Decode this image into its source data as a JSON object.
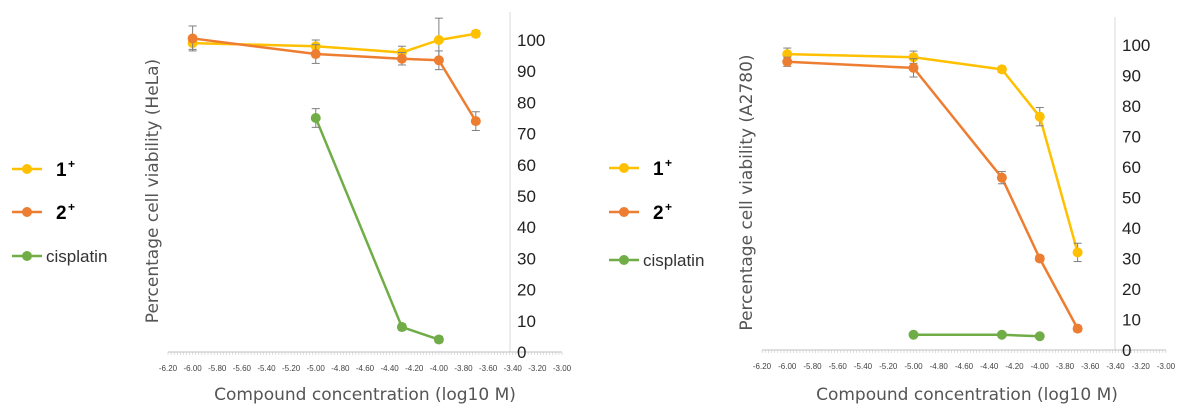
{
  "chart_data": [
    {
      "type": "line",
      "title": "",
      "xlabel": "Compound concentration (log10 M)",
      "ylabel": "Percentage cell viability (HeLa)",
      "xlim": [
        -6.2,
        -3.0
      ],
      "ylim": [
        0,
        100
      ],
      "x_ticks": [
        "-6.20",
        "-6.00",
        "-5.80",
        "-5.60",
        "-5.40",
        "-5.20",
        "-5.00",
        "-4.80",
        "-4.60",
        "-4.40",
        "-4.20",
        "-4.00",
        "-3.80",
        "-3.60",
        "-3.40",
        "-3.20",
        "-3.00"
      ],
      "y_ticks": [
        "0",
        "10",
        "20",
        "30",
        "40",
        "50",
        "60",
        "70",
        "80",
        "90",
        "100"
      ],
      "y_axis_side": "right",
      "grid": false,
      "legend_position": "left",
      "series": [
        {
          "name": "1",
          "name_superscript": "+",
          "color": "#FFC000",
          "points": [
            {
              "x": -6.0,
              "y": 99,
              "err": 2
            },
            {
              "x": -5.0,
              "y": 98,
              "err": 2
            },
            {
              "x": -4.3,
              "y": 96,
              "err": 2
            },
            {
              "x": -4.0,
              "y": 100,
              "err": 7
            },
            {
              "x": -3.7,
              "y": 102,
              "err": 1
            }
          ]
        },
        {
          "name": "2",
          "name_superscript": "+",
          "color": "#ED7D31",
          "points": [
            {
              "x": -6.0,
              "y": 100.5,
              "err": 4
            },
            {
              "x": -5.0,
              "y": 95.5,
              "err": 3
            },
            {
              "x": -4.3,
              "y": 94,
              "err": 2
            },
            {
              "x": -4.0,
              "y": 93.5,
              "err": 3
            },
            {
              "x": -3.7,
              "y": 74,
              "err": 3
            }
          ]
        },
        {
          "name": "cisplatin",
          "name_superscript": "",
          "color": "#70AD47",
          "points": [
            {
              "x": -5.0,
              "y": 75,
              "err": 3
            },
            {
              "x": -4.3,
              "y": 8,
              "err": 1
            },
            {
              "x": -4.0,
              "y": 4,
              "err": 1
            }
          ]
        }
      ]
    },
    {
      "type": "line",
      "title": "",
      "xlabel": "Compound concentration (log10 M)",
      "ylabel": "Percentage cell viability (A2780)",
      "xlim": [
        -6.2,
        -3.0
      ],
      "ylim": [
        0,
        100
      ],
      "x_ticks": [
        "-6.20",
        "-6.00",
        "-5.80",
        "-5.60",
        "-5.40",
        "-5.20",
        "-5.00",
        "-4.80",
        "-4.60",
        "-4.40",
        "-4.20",
        "-4.00",
        "-3.80",
        "-3.60",
        "-3.40",
        "-3.20",
        "-3.00"
      ],
      "y_ticks": [
        "0",
        "10",
        "20",
        "30",
        "40",
        "50",
        "60",
        "70",
        "80",
        "90",
        "100"
      ],
      "y_axis_side": "right",
      "grid": false,
      "legend_position": "left",
      "series": [
        {
          "name": "1",
          "name_superscript": "+",
          "color": "#FFC000",
          "points": [
            {
              "x": -6.0,
              "y": 97,
              "err": 2
            },
            {
              "x": -5.0,
              "y": 96,
              "err": 2
            },
            {
              "x": -4.3,
              "y": 92,
              "err": 1
            },
            {
              "x": -4.0,
              "y": 76.5,
              "err": 3
            },
            {
              "x": -3.7,
              "y": 32,
              "err": 3
            }
          ]
        },
        {
          "name": "2",
          "name_superscript": "+",
          "color": "#ED7D31",
          "points": [
            {
              "x": -6.0,
              "y": 94.5,
              "err": 1.5
            },
            {
              "x": -5.0,
              "y": 92.5,
              "err": 3
            },
            {
              "x": -4.3,
              "y": 56.5,
              "err": 2
            },
            {
              "x": -4.0,
              "y": 30,
              "err": 1
            },
            {
              "x": -3.7,
              "y": 7,
              "err": 1
            }
          ]
        },
        {
          "name": "cisplatin",
          "name_superscript": "",
          "color": "#70AD47",
          "points": [
            {
              "x": -5.0,
              "y": 5,
              "err": 0.5
            },
            {
              "x": -4.3,
              "y": 5,
              "err": 0.5
            },
            {
              "x": -4.0,
              "y": 4.5,
              "err": 0.5
            }
          ]
        }
      ]
    }
  ]
}
